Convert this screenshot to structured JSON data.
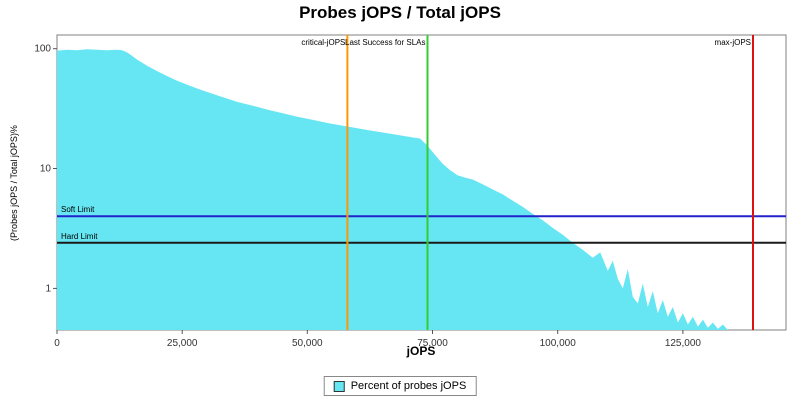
{
  "title": "Probes jOPS / Total jOPS",
  "chart_data": {
    "type": "area",
    "title": "Probes jOPS / Total jOPS",
    "xlabel": "jOPS",
    "ylabel": "(Probes jOPS / Total jOPS)%",
    "y_scale": "log",
    "grid": false,
    "xlim": [
      0,
      145600
    ],
    "ylim": [
      0.45,
      130
    ],
    "x_ticks": [
      0,
      25000,
      50000,
      75000,
      100000,
      125000
    ],
    "x_tick_labels": [
      "0",
      "25,000",
      "50,000",
      "75,000",
      "100,000",
      "125,000"
    ],
    "y_ticks": [
      1,
      10,
      100
    ],
    "y_tick_labels": [
      "1",
      "10",
      "100"
    ],
    "series_name": "Percent of probes jOPS",
    "series_color": "#66E6F2",
    "points": [
      [
        0,
        96
      ],
      [
        2000,
        98
      ],
      [
        4000,
        97
      ],
      [
        6000,
        99
      ],
      [
        8000,
        98
      ],
      [
        10000,
        97
      ],
      [
        12000,
        98
      ],
      [
        13000,
        97
      ],
      [
        14000,
        93
      ],
      [
        15000,
        87
      ],
      [
        16000,
        81
      ],
      [
        18000,
        72
      ],
      [
        20000,
        65
      ],
      [
        22000,
        59
      ],
      [
        24000,
        54
      ],
      [
        26000,
        50
      ],
      [
        28000,
        46.5
      ],
      [
        30000,
        43.5
      ],
      [
        33000,
        39.5
      ],
      [
        36000,
        36
      ],
      [
        39000,
        33.5
      ],
      [
        42000,
        31
      ],
      [
        45000,
        29
      ],
      [
        48000,
        27
      ],
      [
        51000,
        25.5
      ],
      [
        54000,
        24
      ],
      [
        57000,
        22.8
      ],
      [
        60000,
        21.7
      ],
      [
        63000,
        20.6
      ],
      [
        66000,
        19.7
      ],
      [
        69000,
        18.8
      ],
      [
        71000,
        18.2
      ],
      [
        72500,
        17.8
      ],
      [
        74000,
        15.5
      ],
      [
        75500,
        13
      ],
      [
        77000,
        11
      ],
      [
        78500,
        9.7
      ],
      [
        80000,
        8.8
      ],
      [
        81500,
        8.4
      ],
      [
        83000,
        8.1
      ],
      [
        85000,
        7.4
      ],
      [
        87000,
        6.7
      ],
      [
        89000,
        6.1
      ],
      [
        91000,
        5.4
      ],
      [
        93000,
        4.8
      ],
      [
        95000,
        4.2
      ],
      [
        97000,
        3.7
      ],
      [
        99000,
        3.2
      ],
      [
        101000,
        2.8
      ],
      [
        103000,
        2.4
      ],
      [
        105000,
        2.1
      ],
      [
        107000,
        1.8
      ],
      [
        108500,
        2.0
      ],
      [
        110000,
        1.4
      ],
      [
        111000,
        1.7
      ],
      [
        112000,
        1.2
      ],
      [
        113000,
        1.0
      ],
      [
        114000,
        1.45
      ],
      [
        115000,
        0.85
      ],
      [
        116000,
        0.75
      ],
      [
        117000,
        1.1
      ],
      [
        118000,
        0.7
      ],
      [
        119000,
        0.95
      ],
      [
        120000,
        0.62
      ],
      [
        121000,
        0.8
      ],
      [
        122000,
        0.58
      ],
      [
        123000,
        0.7
      ],
      [
        124000,
        0.52
      ],
      [
        125000,
        0.62
      ],
      [
        126000,
        0.5
      ],
      [
        127000,
        0.58
      ],
      [
        128000,
        0.48
      ],
      [
        129000,
        0.55
      ],
      [
        130000,
        0.47
      ],
      [
        131000,
        0.52
      ],
      [
        132000,
        0.46
      ],
      [
        133000,
        0.5
      ],
      [
        134000,
        0.45
      ]
    ],
    "vlines": [
      {
        "label": "critical-jOPS",
        "x": 58000,
        "color": "#FF9800"
      },
      {
        "label": "Last Success for SLAs",
        "x": 74000,
        "color": "#33CC33"
      },
      {
        "label": "max-jOPS",
        "x": 139000,
        "color": "#DD1111"
      }
    ],
    "hlines": [
      {
        "label": "Soft Limit",
        "y": 4,
        "color": "#2222CC"
      },
      {
        "label": "Hard Limit",
        "y": 2.4,
        "color": "#1A1A1A"
      }
    ],
    "legend": {
      "position": "bottom-center",
      "label": "Percent of probes jOPS",
      "swatch_color": "#66E6F2"
    }
  }
}
